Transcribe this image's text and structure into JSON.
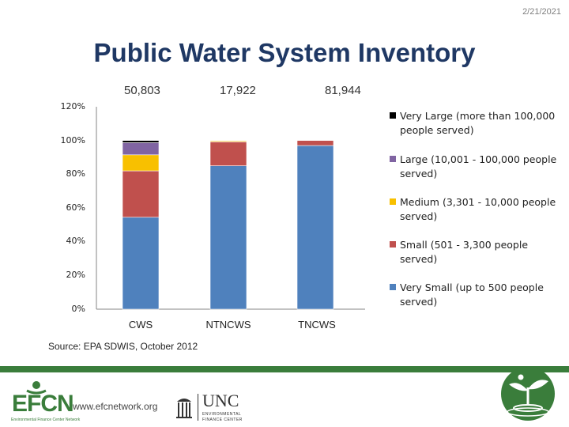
{
  "date": "2/21/2021",
  "title": "Public Water System Inventory",
  "totals": [
    "50,803",
    "17,922",
    "81,944"
  ],
  "source": "Source: EPA SDWIS, October 2012",
  "footer": {
    "url": "www.efcnetwork.org",
    "efcn_logo": "EFCN",
    "efcn_tagline": "Environmental Finance Center Network",
    "unc_logo": "UNC",
    "unc_sub1": "ENVIRONMENTAL",
    "unc_sub2": "FINANCE CENTER"
  },
  "colors": {
    "very_small": "#4f81bd",
    "small": "#c0504d",
    "medium": "#f8c000",
    "large": "#8064a2",
    "very_large": "#000000",
    "brand_green": "#3a7d3b",
    "title": "#1f3864"
  },
  "chart_data": {
    "type": "bar",
    "stacked": true,
    "categories": [
      "CWS",
      "NTNCWS",
      "TNCWS"
    ],
    "yticks": [
      "0%",
      "20%",
      "40%",
      "60%",
      "80%",
      "100%",
      "120%"
    ],
    "ylim": [
      0,
      120
    ],
    "grid": false,
    "legend_position": "right",
    "series": [
      {
        "name": "Very Small (up to 500 people served)",
        "values": [
          54.5,
          85,
          97
        ],
        "color_key": "very_small"
      },
      {
        "name": "Small (501 - 3,300 people served)",
        "values": [
          27.5,
          14.2,
          3
        ],
        "color_key": "small"
      },
      {
        "name": "Medium (3,301 - 10,000 people served)",
        "values": [
          9.5,
          0.6,
          0
        ],
        "color_key": "medium"
      },
      {
        "name": "Large (10,001 - 100,000 people served)",
        "values": [
          7.2,
          0.2,
          0
        ],
        "color_key": "large"
      },
      {
        "name": "Very Large (more than 100,000 people served)",
        "values": [
          1.3,
          0,
          0
        ],
        "color_key": "very_large"
      }
    ]
  }
}
